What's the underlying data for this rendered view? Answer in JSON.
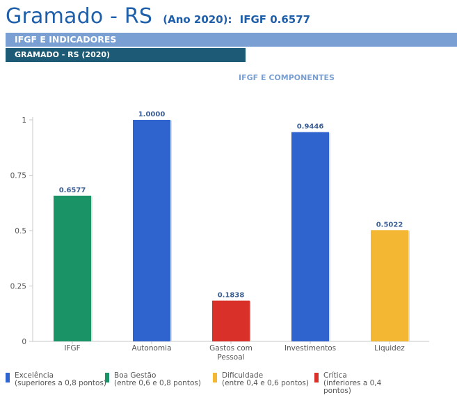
{
  "header": {
    "city": "Gramado - RS",
    "year_label": "(Ano 2020):",
    "ifgf_label": "IFGF  0.6577"
  },
  "section_bar": "IFGF E INDICADORES",
  "subsection_bar": "GRAMADO - RS (2020)",
  "chart_data": {
    "type": "bar",
    "title": "IFGF E COMPONENTES",
    "categories": [
      "IFGF",
      "Autonomia",
      "Gastos com\nPessoal",
      "Investimentos",
      "Liquidez"
    ],
    "values": [
      0.6577,
      1.0,
      0.1838,
      0.9446,
      0.5022
    ],
    "value_labels": [
      "0.6577",
      "1.0000",
      "0.1838",
      "0.9446",
      "0.5022"
    ],
    "bar_colors": [
      "#1a9467",
      "#2f64cf",
      "#d9302a",
      "#2f64cf",
      "#f4b733"
    ],
    "ylim": [
      0,
      1
    ],
    "yticks": [
      0,
      0.25,
      0.5,
      0.75,
      1
    ],
    "ytick_labels": [
      "0",
      "0.25",
      "0.5",
      "0.75",
      "1"
    ],
    "grid": false
  },
  "legend": [
    {
      "color": "#2f64cf",
      "label": "Excelência",
      "desc": "(superiores a 0,8 pontos)"
    },
    {
      "color": "#1a9467",
      "label": "Boa Gestão",
      "desc": "(entre 0,6 e 0,8 pontos)"
    },
    {
      "color": "#f4b733",
      "label": "Dificuldade",
      "desc": "(entre 0,4 e 0,6 pontos)"
    },
    {
      "color": "#d9302a",
      "label": "Crítica",
      "desc": "(inferiores a 0,4 pontos)"
    }
  ]
}
